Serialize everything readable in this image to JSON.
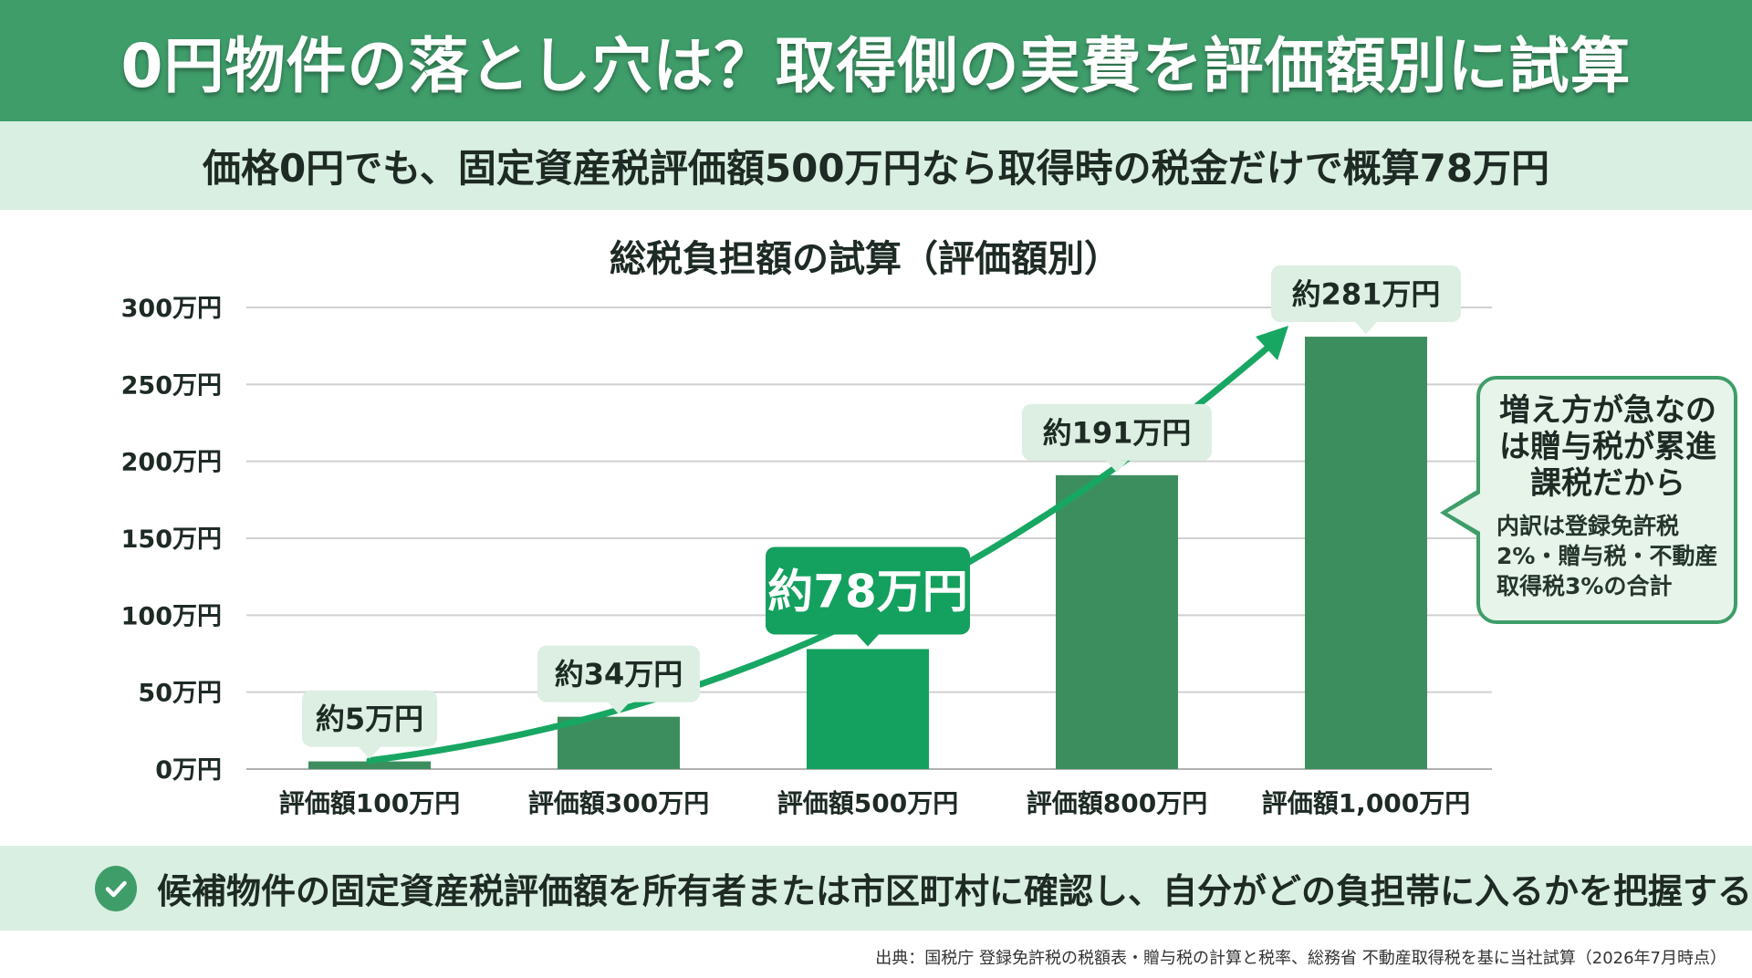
{
  "header": {
    "title": "0円物件の落とし穴は？取得側の実費を評価額別に試算",
    "subtitle": "価格0円でも、固定資産税評価額500万円なら取得時の税金だけで概算78万円"
  },
  "chart_data": {
    "type": "bar",
    "title": "総税負担額の試算（評価額別）",
    "categories": [
      "評価額100万円",
      "評価額300万円",
      "評価額500万円",
      "評価額800万円",
      "評価額1,000万円"
    ],
    "values": [
      5,
      34,
      78,
      191,
      281
    ],
    "unit": "万円",
    "ylim": [
      0,
      300
    ],
    "yticks": [
      0,
      50,
      100,
      150,
      200,
      250,
      300
    ],
    "ytick_labels": [
      "0万円",
      "50万円",
      "100万円",
      "150万円",
      "200万円",
      "250万円",
      "300万円"
    ],
    "data_labels": [
      "約5万円",
      "約34万円",
      "約78万円",
      "約191万円",
      "約281万円"
    ],
    "highlight_index": 2,
    "grid": true,
    "trend_arrow": true
  },
  "colors": {
    "title_band": "#3f9d6a",
    "light_band": "#d9efe1",
    "bar": "#3d8e5e",
    "bar_highlight": "#14a05e",
    "label_bg": "#dcefe2",
    "arrow": "#18a763",
    "grid": "#d0d0d0"
  },
  "callout": {
    "heading": "増え方が急なのは贈与税が累進課税だから",
    "body": "内訳は登録免許税2%・贈与税・不動産取得税3%の合計"
  },
  "action": {
    "icon": "check-circle-icon",
    "text": "候補物件の固定資産税評価額を所有者または市区町村に確認し、自分がどの負担帯に入るかを把握する"
  },
  "source": "出典：国税庁 登録免許税の税額表・贈与税の計算と税率、総務省 不動産取得税を基に当社試算（2026年7月時点）"
}
